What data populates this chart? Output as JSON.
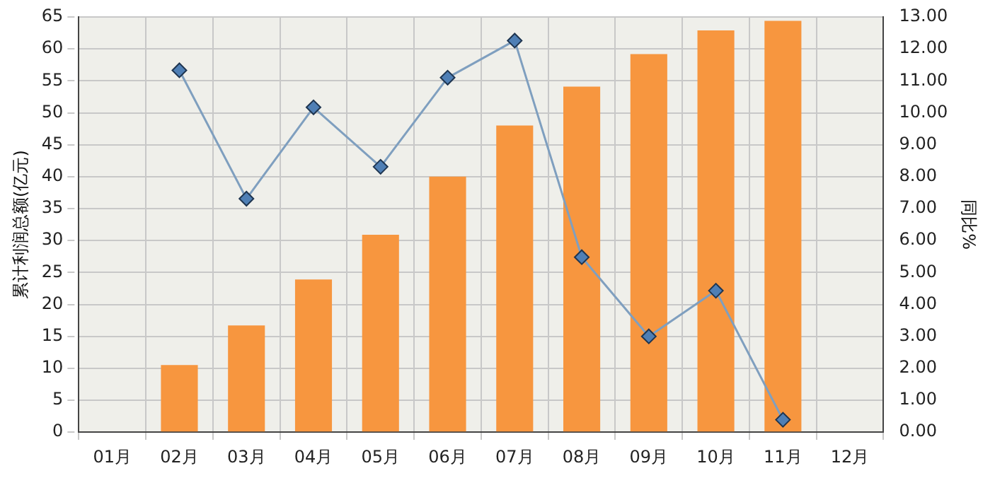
{
  "chart_data": {
    "type": "bar",
    "ylabel": "累计利润总额(亿元)",
    "y2label": "同比%",
    "categories": [
      "01月",
      "02月",
      "03月",
      "04月",
      "05月",
      "06月",
      "07月",
      "08月",
      "09月",
      "10月",
      "11月",
      "12月"
    ],
    "series": [
      {
        "color": "#f7963f",
        "values": [
          null,
          10.5,
          16.7,
          23.9,
          30.9,
          40.0,
          48.0,
          54.1,
          59.2,
          62.9,
          64.4,
          null
        ]
      },
      {
        "type": "line",
        "axis": "y2",
        "color": "#7f9fbf",
        "marker": "diamond",
        "values": [
          null,
          11.33,
          7.31,
          10.17,
          8.31,
          11.1,
          12.26,
          5.48,
          3.0,
          4.43,
          0.39,
          null
        ]
      }
    ],
    "ylim": [
      0,
      65
    ],
    "yticks": [
      0,
      5,
      10,
      15,
      20,
      25,
      30,
      35,
      40,
      45,
      50,
      55,
      60,
      65
    ],
    "y2lim": [
      0,
      13
    ],
    "y2ticks": [
      {
        "value": 0,
        "label": "0.00"
      },
      {
        "value": 1,
        "label": "1.00"
      },
      {
        "value": 2,
        "label": "2.00"
      },
      {
        "value": 3,
        "label": "3.00"
      },
      {
        "value": 4,
        "label": "4.00"
      },
      {
        "value": 5,
        "label": "5.00"
      },
      {
        "value": 6,
        "label": "6.00"
      },
      {
        "value": 7,
        "label": "7.00"
      },
      {
        "value": 8,
        "label": "8.00"
      },
      {
        "value": 9,
        "label": "9.00"
      },
      {
        "value": 10,
        "label": "10.00"
      },
      {
        "value": 11,
        "label": "11.00"
      },
      {
        "value": 12,
        "label": "12.00"
      },
      {
        "value": 13,
        "label": "13.00"
      }
    ],
    "grid": true,
    "legend": false
  }
}
